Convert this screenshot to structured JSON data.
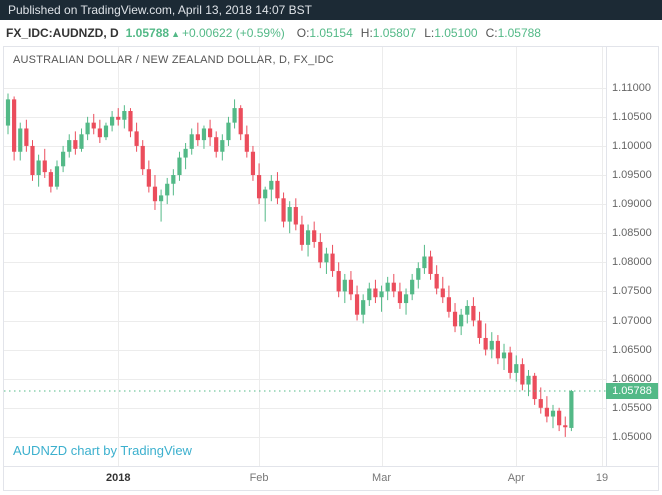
{
  "header": {
    "published_text": "Published on TradingView.com, April 13, 2018 14:07 BST"
  },
  "info_bar": {
    "symbol": "FX_IDC:AUDNZD, D",
    "last_price": "1.05788",
    "change_arrow": "▲",
    "change_text": "+0.00622 (+0.59%)",
    "open_label": "O:",
    "open": "1.05154",
    "high_label": "H:",
    "high": "1.05807",
    "low_label": "L:",
    "low": "1.05100",
    "close_label": "C:",
    "close": "1.05788"
  },
  "chart": {
    "title": "AUSTRALIAN DOLLAR / NEW ZEALAND DOLLAR, D, FX_IDC",
    "watermark": "AUDNZD chart by TradingView",
    "price_label": "1.05788",
    "colors": {
      "up": "#53b987",
      "down": "#eb4d5c",
      "grid": "#ececec",
      "header_bg": "#1c2a35",
      "watermark": "#3cb0ce",
      "badge_bg": "#53b987"
    }
  },
  "chart_data": {
    "type": "candlestick",
    "symbol": "AUDNZD",
    "interval": "D",
    "title": "AUSTRALIAN DOLLAR / NEW ZEALAND DOLLAR, D, FX_IDC",
    "y_ticks": [
      "1.11000",
      "1.10500",
      "1.10000",
      "1.09500",
      "1.09000",
      "1.08500",
      "1.08000",
      "1.07500",
      "1.07000",
      "1.06500",
      "1.06000",
      "1.05500",
      "1.05000"
    ],
    "x_ticks": [
      {
        "label": "2018",
        "index": 18
      },
      {
        "label": "Feb",
        "index": 41
      },
      {
        "label": "Mar",
        "index": 61
      },
      {
        "label": "Apr",
        "index": 83
      },
      {
        "label": "19",
        "index": 97
      }
    ],
    "y_range": [
      1.045,
      1.117
    ],
    "last_price": 1.05788,
    "legend_position": "none",
    "grid": true,
    "candles": [
      [
        1.1035,
        1.109,
        1.102,
        1.108
      ],
      [
        1.108,
        1.1085,
        1.0975,
        1.099
      ],
      [
        1.099,
        1.104,
        1.0975,
        1.103
      ],
      [
        1.103,
        1.1045,
        1.099,
        1.1
      ],
      [
        1.1,
        1.101,
        1.094,
        1.095
      ],
      [
        1.095,
        1.0985,
        1.093,
        1.0975
      ],
      [
        1.0975,
        1.0995,
        1.0945,
        1.0955
      ],
      [
        1.0955,
        1.096,
        1.092,
        1.093
      ],
      [
        1.093,
        1.0975,
        1.0925,
        1.0965
      ],
      [
        1.0965,
        1.1,
        1.0955,
        1.099
      ],
      [
        1.099,
        1.102,
        1.098,
        1.101
      ],
      [
        1.101,
        1.1025,
        1.0985,
        1.0995
      ],
      [
        1.0995,
        1.103,
        1.099,
        1.102
      ],
      [
        1.102,
        1.105,
        1.101,
        1.104
      ],
      [
        1.104,
        1.1055,
        1.102,
        1.103
      ],
      [
        1.103,
        1.1045,
        1.1005,
        1.1015
      ],
      [
        1.1015,
        1.104,
        1.101,
        1.1035
      ],
      [
        1.1035,
        1.106,
        1.1025,
        1.105
      ],
      [
        1.105,
        1.1065,
        1.1035,
        1.1045
      ],
      [
        1.1045,
        1.107,
        1.103,
        1.106
      ],
      [
        1.106,
        1.1065,
        1.1015,
        1.1025
      ],
      [
        1.1025,
        1.104,
        1.099,
        1.1
      ],
      [
        1.1,
        1.101,
        1.095,
        1.096
      ],
      [
        1.096,
        1.0975,
        1.092,
        1.093
      ],
      [
        1.093,
        1.095,
        1.089,
        1.0905
      ],
      [
        1.0905,
        1.0925,
        1.087,
        1.0915
      ],
      [
        1.0915,
        1.0945,
        1.09,
        1.0935
      ],
      [
        1.0935,
        1.096,
        1.0915,
        1.095
      ],
      [
        1.095,
        1.099,
        1.094,
        1.098
      ],
      [
        1.098,
        1.1005,
        1.096,
        1.0995
      ],
      [
        1.0995,
        1.103,
        1.0985,
        1.102
      ],
      [
        1.102,
        1.104,
        1.1,
        1.101
      ],
      [
        1.101,
        1.1035,
        1.0995,
        1.103
      ],
      [
        1.103,
        1.1045,
        1.1,
        1.1015
      ],
      [
        1.1015,
        1.1025,
        1.098,
        1.099
      ],
      [
        1.099,
        1.102,
        1.0975,
        1.101
      ],
      [
        1.101,
        1.105,
        1.1,
        1.104
      ],
      [
        1.104,
        1.108,
        1.103,
        1.1065
      ],
      [
        1.1065,
        1.107,
        1.101,
        1.102
      ],
      [
        1.102,
        1.1035,
        1.098,
        1.099
      ],
      [
        1.099,
        1.1,
        1.094,
        1.095
      ],
      [
        1.095,
        1.097,
        1.09,
        1.091
      ],
      [
        1.091,
        1.093,
        1.087,
        1.0925
      ],
      [
        1.0925,
        1.095,
        1.0905,
        1.094
      ],
      [
        1.094,
        1.0955,
        1.09,
        1.091
      ],
      [
        1.091,
        1.092,
        1.086,
        1.087
      ],
      [
        1.087,
        1.0905,
        1.085,
        1.0895
      ],
      [
        1.0895,
        1.091,
        1.0855,
        1.0865
      ],
      [
        1.0865,
        1.088,
        1.082,
        1.083
      ],
      [
        1.083,
        1.0865,
        1.081,
        1.0855
      ],
      [
        1.0855,
        1.087,
        1.0825,
        1.0835
      ],
      [
        1.0835,
        1.085,
        1.079,
        1.08
      ],
      [
        1.08,
        1.0825,
        1.078,
        1.0815
      ],
      [
        1.0815,
        1.083,
        1.0775,
        1.0785
      ],
      [
        1.0785,
        1.08,
        1.074,
        1.075
      ],
      [
        1.075,
        1.078,
        1.073,
        1.077
      ],
      [
        1.077,
        1.0785,
        1.0735,
        1.0745
      ],
      [
        1.0745,
        1.076,
        1.07,
        1.071
      ],
      [
        1.071,
        1.0745,
        1.0695,
        1.0735
      ],
      [
        1.0735,
        1.0765,
        1.0725,
        1.0755
      ],
      [
        1.0755,
        1.077,
        1.073,
        1.074
      ],
      [
        1.074,
        1.076,
        1.0715,
        1.075
      ],
      [
        1.075,
        1.0775,
        1.0735,
        1.0765
      ],
      [
        1.0765,
        1.078,
        1.074,
        1.075
      ],
      [
        1.075,
        1.0765,
        1.072,
        1.073
      ],
      [
        1.073,
        1.0755,
        1.071,
        1.0745
      ],
      [
        1.0745,
        1.078,
        1.0735,
        1.077
      ],
      [
        1.077,
        1.08,
        1.0755,
        1.079
      ],
      [
        1.079,
        1.083,
        1.078,
        1.081
      ],
      [
        1.081,
        1.082,
        1.077,
        1.078
      ],
      [
        1.078,
        1.0795,
        1.0745,
        1.0755
      ],
      [
        1.0755,
        1.0775,
        1.073,
        1.074
      ],
      [
        1.074,
        1.076,
        1.0705,
        1.0715
      ],
      [
        1.0715,
        1.073,
        1.068,
        1.069
      ],
      [
        1.069,
        1.072,
        1.0675,
        1.071
      ],
      [
        1.071,
        1.0735,
        1.0695,
        1.0725
      ],
      [
        1.0725,
        1.074,
        1.069,
        1.07
      ],
      [
        1.07,
        1.0715,
        1.066,
        1.067
      ],
      [
        1.067,
        1.0695,
        1.064,
        1.065
      ],
      [
        1.065,
        1.068,
        1.0635,
        1.0665
      ],
      [
        1.0665,
        1.0675,
        1.0625,
        1.0635
      ],
      [
        1.0635,
        1.066,
        1.0615,
        1.0645
      ],
      [
        1.0645,
        1.0655,
        1.06,
        1.061
      ],
      [
        1.061,
        1.064,
        1.0595,
        1.0625
      ],
      [
        1.0625,
        1.0635,
        1.058,
        1.059
      ],
      [
        1.059,
        1.0615,
        1.057,
        1.0605
      ],
      [
        1.0605,
        1.061,
        1.0555,
        1.0565
      ],
      [
        1.0565,
        1.0585,
        1.054,
        1.055
      ],
      [
        1.055,
        1.057,
        1.0525,
        1.0535
      ],
      [
        1.0535,
        1.0555,
        1.0515,
        1.0545
      ],
      [
        1.0545,
        1.055,
        1.051,
        1.052
      ],
      [
        1.052,
        1.0535,
        1.05,
        1.05166
      ],
      [
        1.05154,
        1.05807,
        1.051,
        1.05788
      ]
    ]
  }
}
